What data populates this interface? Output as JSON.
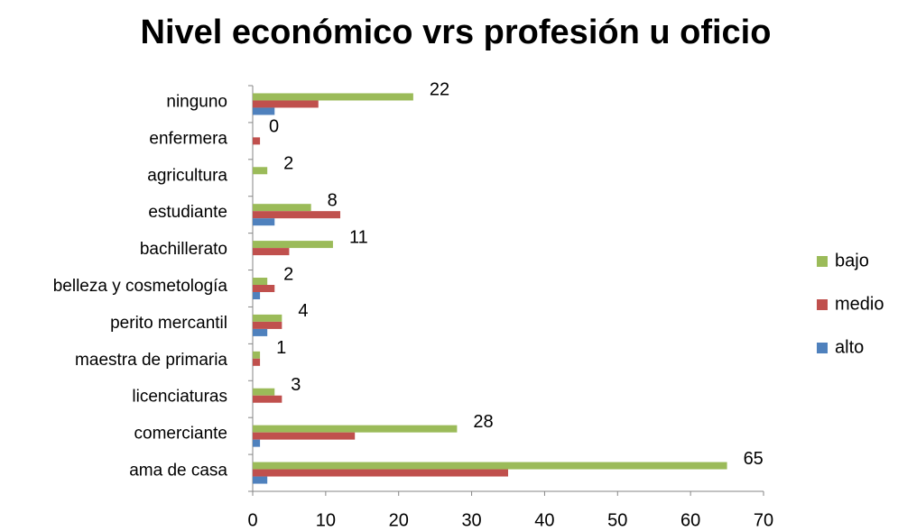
{
  "chart_data": {
    "type": "hbar",
    "title": "Nivel económico vrs profesión u oficio",
    "categories": [
      "ninguno",
      "enfermera",
      "agricultura",
      "estudiante",
      "bachillerato",
      "belleza y cosmetología",
      "perito mercantil",
      "maestra de primaria",
      "licenciaturas",
      "comerciante",
      "ama de casa"
    ],
    "series": [
      {
        "name": "bajo",
        "color": "#9bbb59",
        "values": [
          22,
          0,
          2,
          8,
          11,
          2,
          4,
          1,
          3,
          28,
          65
        ],
        "data_labels": true
      },
      {
        "name": "medio",
        "color": "#c0504d",
        "values": [
          9,
          1,
          0,
          12,
          5,
          3,
          4,
          1,
          4,
          14,
          35
        ],
        "data_labels": false
      },
      {
        "name": "alto",
        "color": "#4f81bd",
        "values": [
          3,
          0,
          0,
          3,
          0,
          1,
          2,
          0,
          0,
          1,
          2
        ],
        "data_labels": false
      }
    ],
    "xlim": [
      0,
      70
    ],
    "xticks": [
      0,
      10,
      20,
      30,
      40,
      50,
      60,
      70
    ],
    "grid": false,
    "legend": "right"
  }
}
